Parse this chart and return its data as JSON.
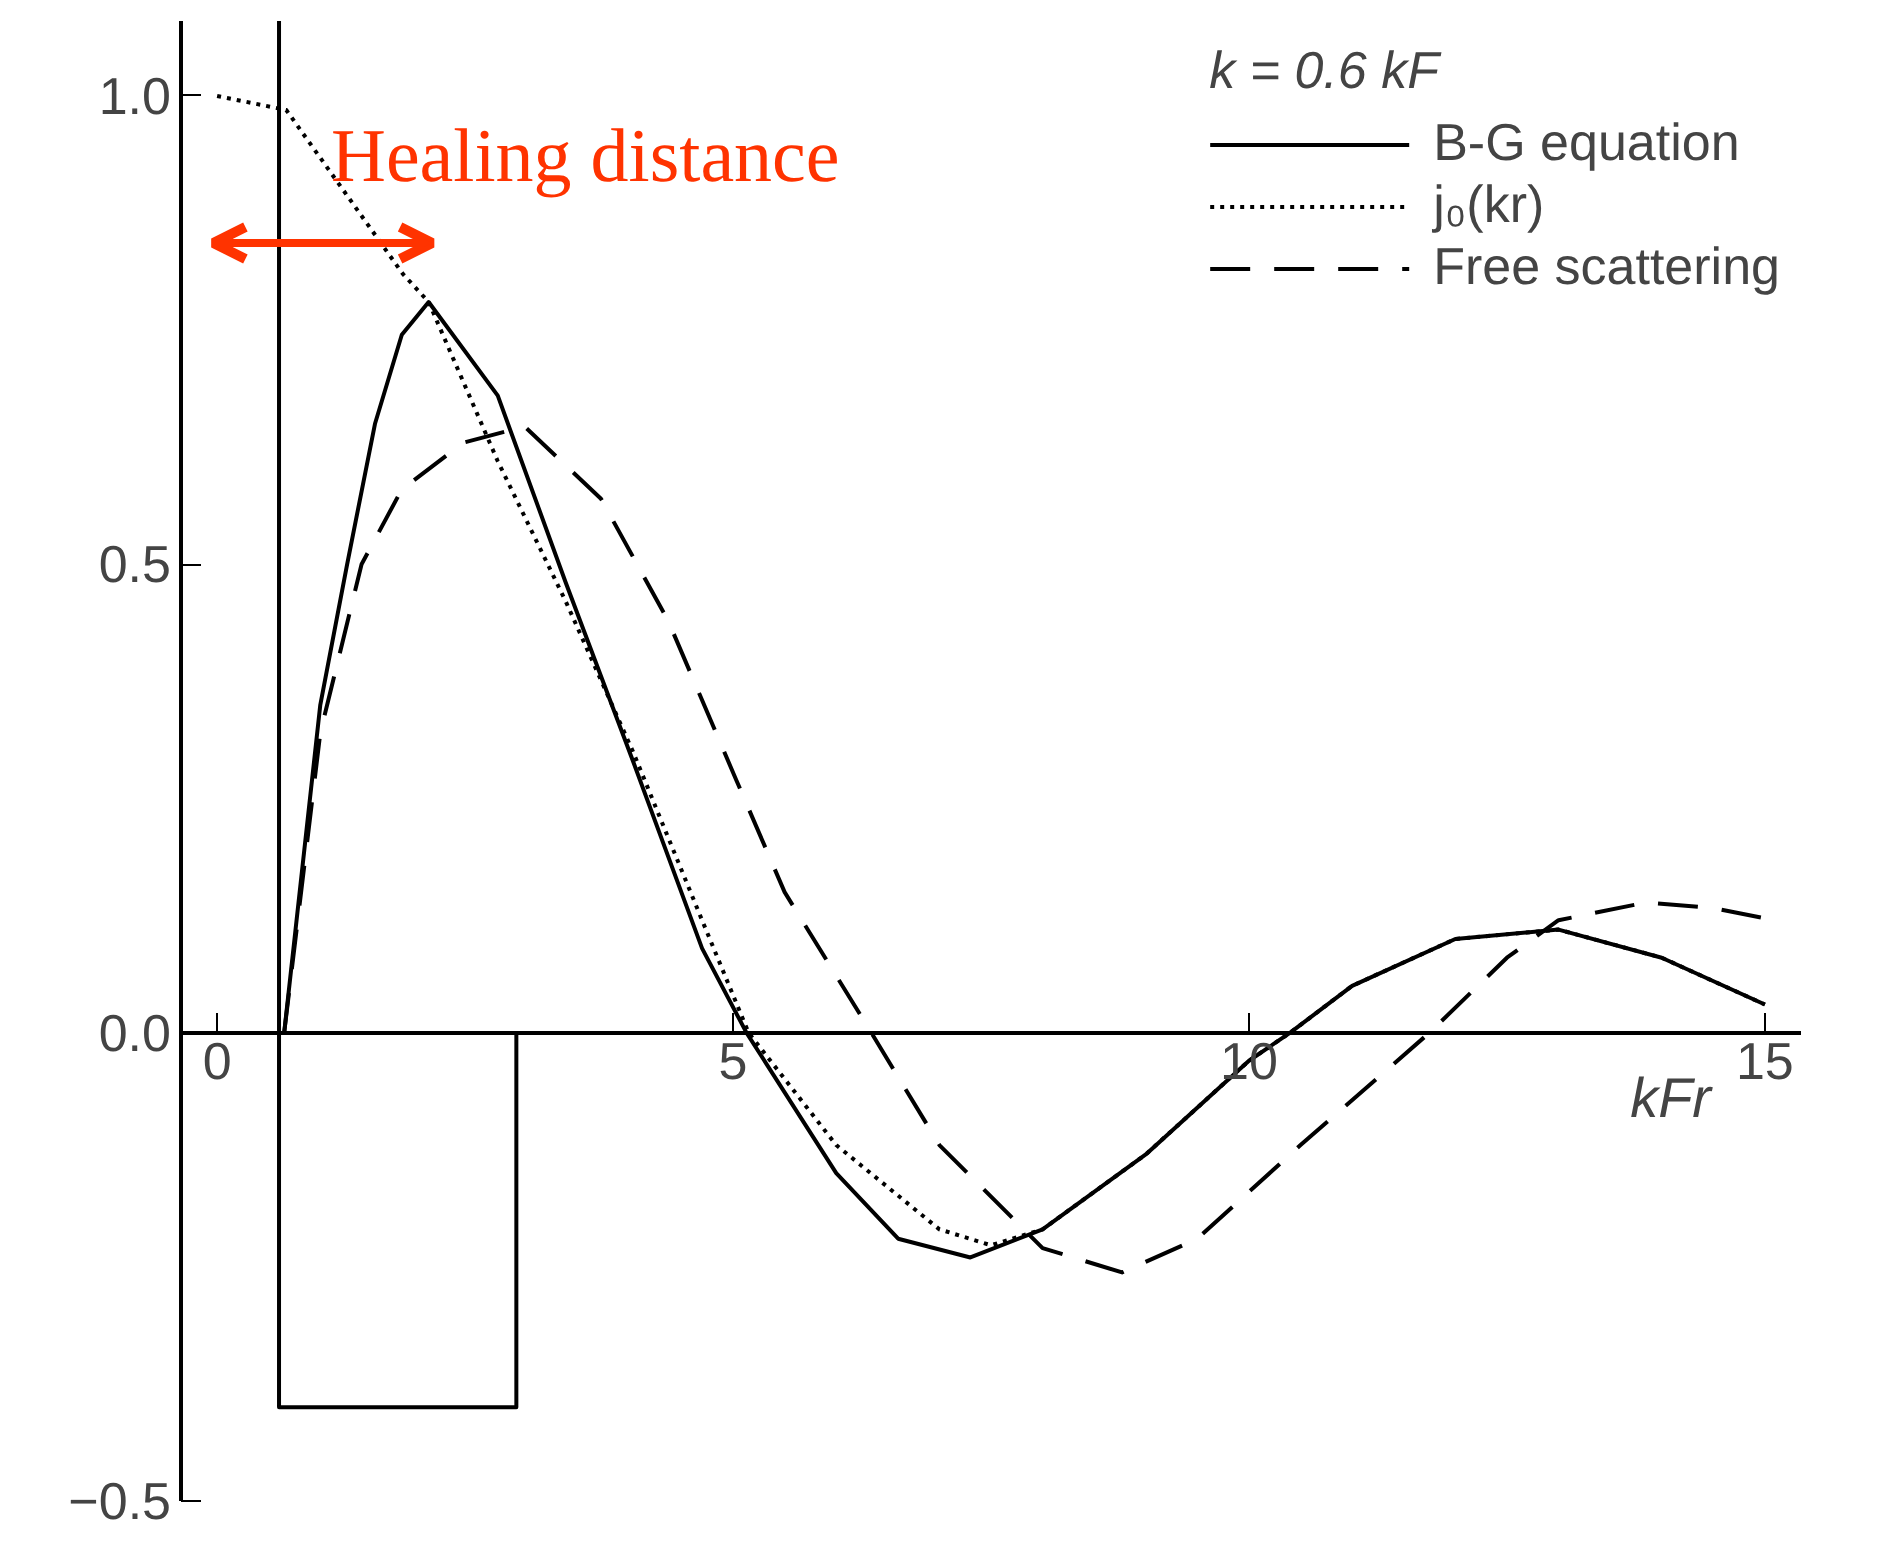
{
  "chart_data": {
    "type": "line",
    "legend_title": "k = 0.6 kF",
    "xlabel": "kFr",
    "xlim": [
      -0.35,
      15.35
    ],
    "ylim": [
      -0.5,
      1.08
    ],
    "xticks": [
      0,
      5,
      10,
      15
    ],
    "yticks": [
      {
        "value": -0.5,
        "label": "−0.5"
      },
      {
        "value": 0,
        "label": "0.0"
      },
      {
        "value": 0.5,
        "label": "0.5"
      },
      {
        "value": 1,
        "label": "1.0"
      }
    ],
    "grid": false,
    "legend": "top right",
    "marker": "none",
    "annotations": [
      "Healing distance"
    ],
    "series": [
      {
        "name": "B-G equation",
        "color": "#000000",
        "line_style": "solid",
        "x": [
          0.65,
          1.0,
          1.26,
          1.53,
          1.79,
          2.05,
          2.72,
          3.38,
          4.03,
          4.7,
          5.13,
          6,
          6.6,
          7.3,
          8,
          9,
          10,
          10.4,
          11,
          12,
          13,
          14,
          15
        ],
        "values": [
          0,
          0.35,
          0.5,
          0.65,
          0.745,
          0.78,
          0.68,
          0.48,
          0.29,
          0.09,
          0,
          -0.15,
          -0.22,
          -0.24,
          -0.21,
          -0.13,
          -0.03,
          0,
          0.05,
          0.1,
          0.11,
          0.08,
          0.03
        ]
      },
      {
        "name": "j₀(kr)",
        "color": "#000000",
        "line_style": "dotted",
        "x": [
          0,
          0.67,
          1.8,
          2.05,
          2.72,
          3.38,
          4.03,
          4.7,
          5.15,
          6,
          7,
          7.5,
          8,
          9,
          10,
          10.4,
          11,
          12,
          13,
          14,
          15
        ],
        "values": [
          1.0,
          0.985,
          0.81,
          0.78,
          0.61,
          0.46,
          0.3,
          0.12,
          0,
          -0.12,
          -0.21,
          -0.227,
          -0.21,
          -0.13,
          -0.03,
          0,
          0.05,
          0.1,
          0.11,
          0.08,
          0.03
        ]
      },
      {
        "name": "Free scattering",
        "color": "#000000",
        "line_style": "dashed",
        "x": [
          0.65,
          1.0,
          1.4,
          1.79,
          2.39,
          2.98,
          3.72,
          4.37,
          5.03,
          5.5,
          6.34,
          7,
          8,
          8.77,
          9.5,
          10.5,
          11.75,
          12.5,
          13,
          13.85,
          14.5,
          15
        ],
        "values": [
          0,
          0.32,
          0.5,
          0.58,
          0.63,
          0.647,
          0.57,
          0.44,
          0.27,
          0.15,
          0,
          -0.12,
          -0.23,
          -0.256,
          -0.22,
          -0.12,
          0,
          0.08,
          0.12,
          0.139,
          0.133,
          0.122
        ]
      },
      {
        "color": "#000000",
        "line_style": "solid",
        "x": [
          0.6,
          0.6,
          2.9,
          2.9
        ],
        "values": [
          1.08,
          -0.4,
          -0.4,
          0
        ]
      }
    ]
  }
}
